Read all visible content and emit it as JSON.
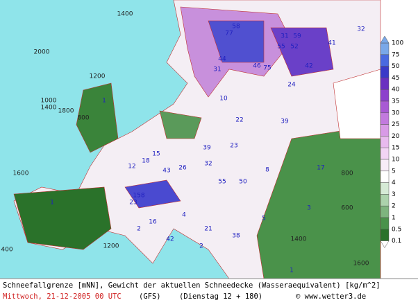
{
  "map": {
    "labels": [
      "1400",
      "2000",
      "1200",
      "1000",
      "1400",
      "1800",
      "1600",
      "800",
      "600",
      "400",
      "1600",
      "1400",
      "800",
      "1200",
      "58",
      "77",
      "31",
      "59",
      "55",
      "52",
      "42",
      "24",
      "39",
      "44",
      "41",
      "46",
      "31",
      "32",
      "75",
      "10",
      "22",
      "39",
      "23",
      "17",
      "43",
      "26",
      "32",
      "55",
      "50",
      "18",
      "15",
      "12",
      "8",
      "3",
      "5",
      "4",
      "1",
      "1",
      "2",
      "2",
      "1",
      "158",
      "23",
      "16",
      "42",
      "38",
      "21"
    ],
    "colorbar": {
      "levels": [
        100,
        75,
        50,
        45,
        40,
        35,
        30,
        25,
        20,
        15,
        10,
        5,
        4,
        3,
        2,
        1,
        0.5,
        0.1
      ],
      "colors": [
        "#7aa8e8",
        "#4a6ae0",
        "#3a3ac8",
        "#6a30c0",
        "#8c40cc",
        "#a85ad4",
        "#c27ade",
        "#d89ae6",
        "#e8baee",
        "#f2d4f4",
        "#f8ecf8",
        "#ffffff",
        "#d6ead6",
        "#acd2ac",
        "#7eb47e",
        "#4a924a",
        "#2a722a"
      ]
    }
  },
  "footer": {
    "title": "Schneefallgrenze [mNN], Gewicht der aktuellen Schneedecke (Wasseraequivalent) [kg/m^2]",
    "date": "Mittwoch, 21-12-2005  00 UTC",
    "model": "(GFS)",
    "run": "(Dienstag 12 + 180)",
    "credit": "© www.wetter3.de"
  }
}
